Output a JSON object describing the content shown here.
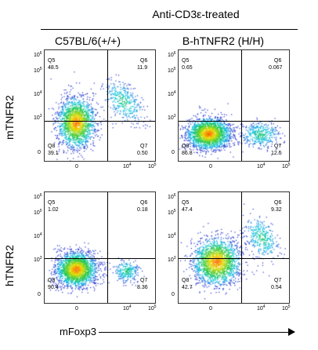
{
  "header": {
    "title": "Anti-CD3ε-treated"
  },
  "columns": [
    {
      "label": "C57BL/6(+/+)"
    },
    {
      "label": "B-hTNFR2 (H/H)"
    }
  ],
  "rows": [
    {
      "label": "mTNFR2"
    },
    {
      "label": "hTNFR2"
    }
  ],
  "x_axis": {
    "label": "mFoxp3"
  },
  "y_ticks": [
    {
      "base": "10",
      "exp": "6"
    },
    {
      "base": "10",
      "exp": "5"
    },
    {
      "base": "10",
      "exp": "4"
    },
    {
      "base": "10",
      "exp": "3"
    },
    {
      "base": "0",
      "exp": ""
    }
  ],
  "x_ticks": [
    {
      "base": "0",
      "exp": ""
    },
    {
      "base": "10",
      "exp": "4"
    },
    {
      "base": "10",
      "exp": "5"
    }
  ],
  "colors": {
    "population_low": "#2030d0",
    "population_high": "#ff6000",
    "gate": "#000000"
  },
  "panels": [
    {
      "id": "p1",
      "quadrants": {
        "Q5": "48.5",
        "Q6": "11.9",
        "Q8": "39.1",
        "Q7": "0.50"
      }
    },
    {
      "id": "p2",
      "quadrants": {
        "Q5": "0.65",
        "Q6": "0.067",
        "Q8": "86.8",
        "Q7": "12.5"
      }
    },
    {
      "id": "p3",
      "quadrants": {
        "Q5": "1.02",
        "Q6": "0.18",
        "Q8": "90.4",
        "Q7": "8.36"
      }
    },
    {
      "id": "p4",
      "quadrants": {
        "Q5": "47.4",
        "Q6": "9.32",
        "Q8": "42.7",
        "Q7": "0.54"
      }
    }
  ],
  "quadrant_names": {
    "Q5": "Q5",
    "Q6": "Q6",
    "Q7": "Q7",
    "Q8": "Q8"
  }
}
